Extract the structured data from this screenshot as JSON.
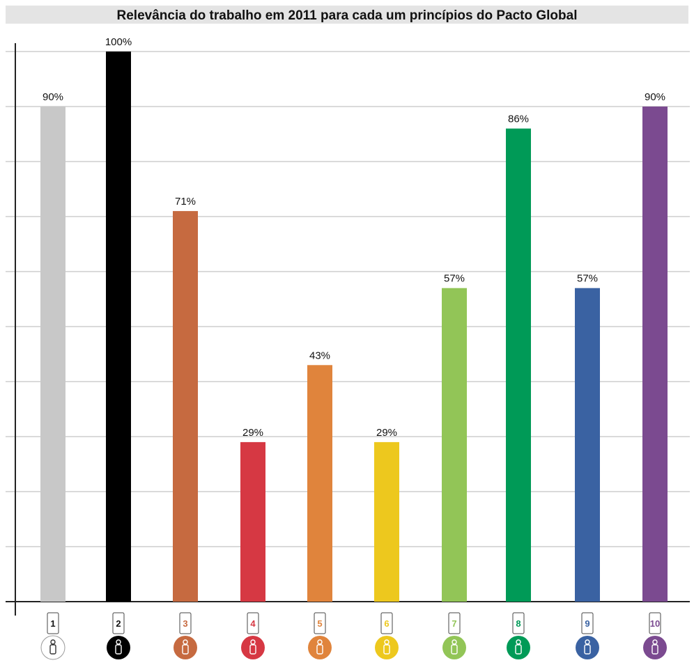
{
  "chart_data": {
    "type": "bar",
    "title": "Relevância do trabalho em 2011 para cada um princípios do Pacto Global",
    "categories": [
      "1",
      "2",
      "3",
      "4",
      "5",
      "6",
      "7",
      "8",
      "9",
      "10"
    ],
    "values": [
      90,
      100,
      71,
      29,
      43,
      29,
      57,
      86,
      57,
      90
    ],
    "value_labels": [
      "90%",
      "100%",
      "71%",
      "29%",
      "43%",
      "29%",
      "57%",
      "86%",
      "57%",
      "90%"
    ],
    "colors": [
      "#c8c8c8",
      "#000000",
      "#c66a40",
      "#d63843",
      "#e0843c",
      "#edc81e",
      "#92c557",
      "#009a57",
      "#3a62a2",
      "#7b4a90"
    ],
    "ylim": [
      0,
      100
    ],
    "xlabel": "",
    "ylabel": "",
    "grid": true,
    "legend": "none"
  },
  "icons": [
    "principle-1-human-rights-icon",
    "principle-2-human-rights-icon",
    "principle-3-labour-icon",
    "principle-4-labour-icon",
    "principle-5-labour-icon",
    "principle-6-labour-icon",
    "principle-7-environment-icon",
    "principle-8-environment-icon",
    "principle-9-environment-icon",
    "principle-10-anti-corruption-icon"
  ]
}
